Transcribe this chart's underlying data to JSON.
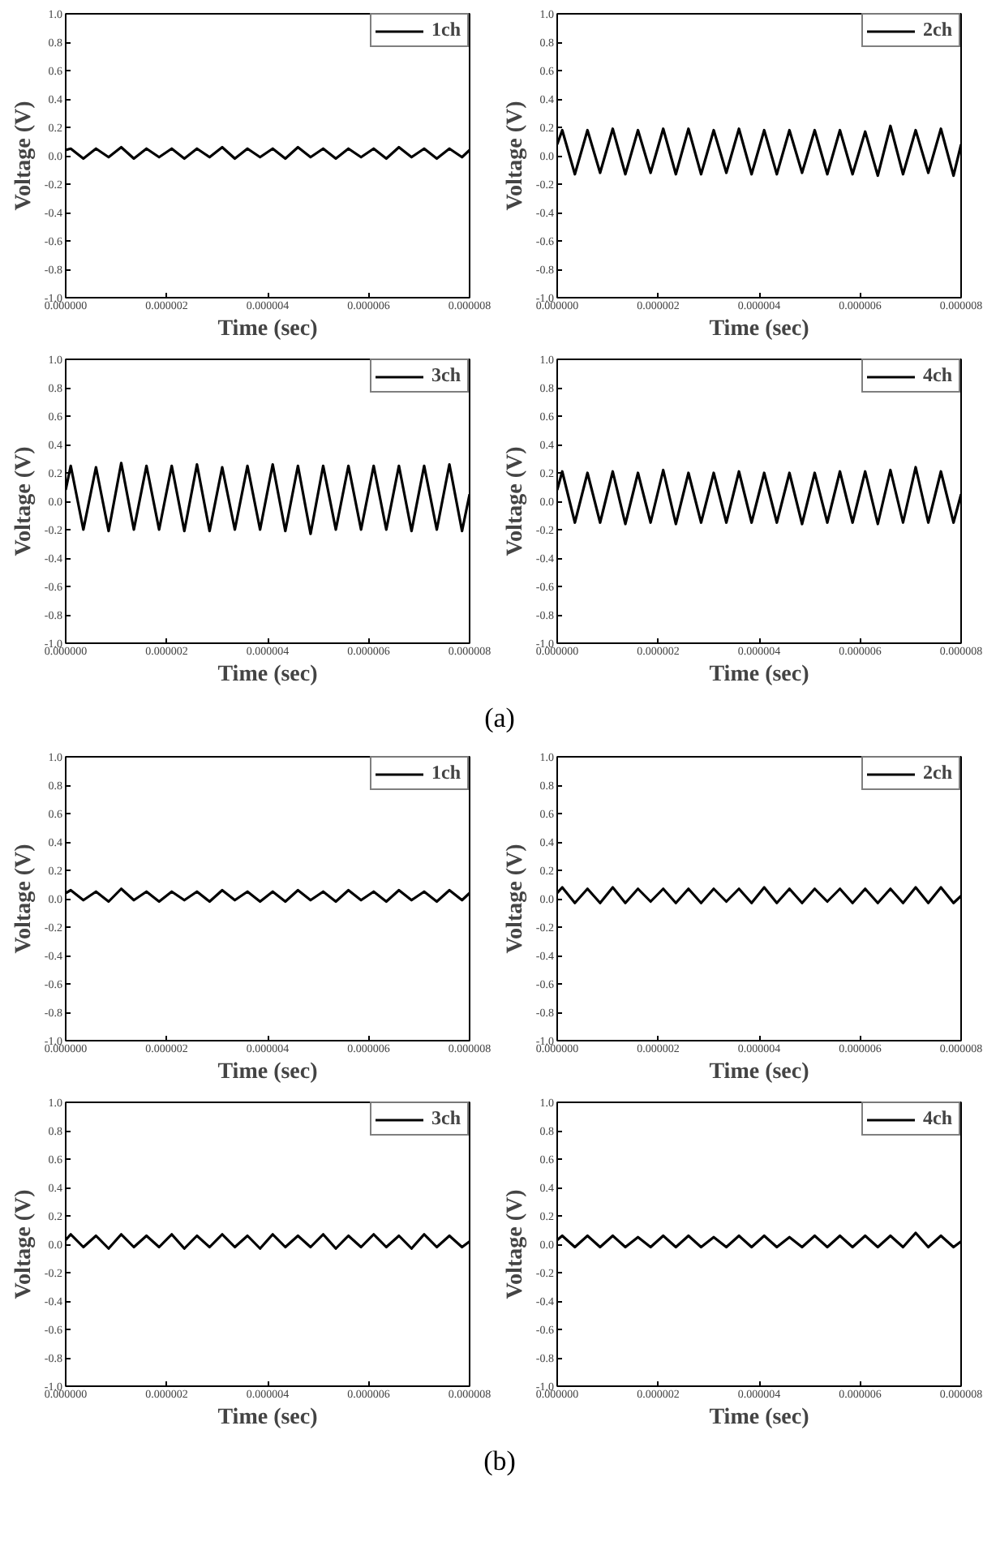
{
  "chart_data": [
    {
      "type": "line",
      "xlabel": "Time (sec)",
      "ylabel": "Voltage (V)",
      "legend": "top right",
      "grid": false,
      "xlim": [
        0,
        8e-06
      ],
      "ylim": [
        -1.0,
        1.0
      ],
      "xticks": [
        {
          "value": 0,
          "label": "0.000000"
        },
        {
          "value": 2e-06,
          "label": "0.000002"
        },
        {
          "value": 4e-06,
          "label": "0.000004"
        },
        {
          "value": 6e-06,
          "label": "0.000006"
        },
        {
          "value": 8e-06,
          "label": "0.000008"
        }
      ],
      "yticks": [
        {
          "value": -1.0,
          "label": "-1.0"
        },
        {
          "value": -0.8,
          "label": "-0.8"
        },
        {
          "value": -0.6,
          "label": "-0.6"
        },
        {
          "value": -0.4,
          "label": "-0.4"
        },
        {
          "value": -0.2,
          "label": "-0.2"
        },
        {
          "value": 0.0,
          "label": "0.0"
        },
        {
          "value": 0.2,
          "label": "0.2"
        },
        {
          "value": 0.4,
          "label": "0.4"
        },
        {
          "value": 0.6,
          "label": "0.6"
        },
        {
          "value": 0.8,
          "label": "0.8"
        },
        {
          "value": 1.0,
          "label": "1.0"
        }
      ],
      "x": [
        0,
        1e-07,
        3.5e-07,
        6e-07,
        8.5e-07,
        1.1e-06,
        1.35e-06,
        1.6e-06,
        1.85e-06,
        2.1e-06,
        2.35e-06,
        2.6e-06,
        2.85e-06,
        3.1e-06,
        3.35e-06,
        3.6e-06,
        3.85e-06,
        4.1e-06,
        4.35e-06,
        4.6e-06,
        4.85e-06,
        5.1e-06,
        5.35e-06,
        5.6e-06,
        5.85e-06,
        6.1e-06,
        6.35e-06,
        6.6e-06,
        6.85e-06,
        7.1e-06,
        7.35e-06,
        7.6e-06,
        7.85e-06,
        8e-06
      ],
      "series": [
        {
          "name": "1ch",
          "color": "#000000",
          "values": [
            0.04,
            0.05,
            -0.02,
            0.05,
            -0.01,
            0.06,
            -0.02,
            0.05,
            -0.01,
            0.05,
            -0.02,
            0.05,
            -0.01,
            0.06,
            -0.02,
            0.05,
            -0.01,
            0.05,
            -0.02,
            0.06,
            -0.01,
            0.05,
            -0.02,
            0.05,
            -0.01,
            0.05,
            -0.02,
            0.06,
            -0.01,
            0.05,
            -0.02,
            0.05,
            -0.01,
            0.04
          ]
        }
      ]
    },
    {
      "type": "line",
      "xlabel": "Time (sec)",
      "ylabel": "Voltage (V)",
      "legend": "top right",
      "grid": false,
      "xlim": [
        0,
        8e-06
      ],
      "ylim": [
        -1.0,
        1.0
      ],
      "xticks": [
        {
          "value": 0,
          "label": "0.000000"
        },
        {
          "value": 2e-06,
          "label": "0.000002"
        },
        {
          "value": 4e-06,
          "label": "0.000004"
        },
        {
          "value": 6e-06,
          "label": "0.000006"
        },
        {
          "value": 8e-06,
          "label": "0.000008"
        }
      ],
      "yticks": [
        {
          "value": -1.0,
          "label": "-1.0"
        },
        {
          "value": -0.8,
          "label": "-0.8"
        },
        {
          "value": -0.6,
          "label": "-0.6"
        },
        {
          "value": -0.4,
          "label": "-0.4"
        },
        {
          "value": -0.2,
          "label": "-0.2"
        },
        {
          "value": 0.0,
          "label": "0.0"
        },
        {
          "value": 0.2,
          "label": "0.2"
        },
        {
          "value": 0.4,
          "label": "0.4"
        },
        {
          "value": 0.6,
          "label": "0.6"
        },
        {
          "value": 0.8,
          "label": "0.8"
        },
        {
          "value": 1.0,
          "label": "1.0"
        }
      ],
      "x": [
        0,
        1e-07,
        3.5e-07,
        6e-07,
        8.5e-07,
        1.1e-06,
        1.35e-06,
        1.6e-06,
        1.85e-06,
        2.1e-06,
        2.35e-06,
        2.6e-06,
        2.85e-06,
        3.1e-06,
        3.35e-06,
        3.6e-06,
        3.85e-06,
        4.1e-06,
        4.35e-06,
        4.6e-06,
        4.85e-06,
        5.1e-06,
        5.35e-06,
        5.6e-06,
        5.85e-06,
        6.1e-06,
        6.35e-06,
        6.6e-06,
        6.85e-06,
        7.1e-06,
        7.35e-06,
        7.6e-06,
        7.85e-06,
        8e-06
      ],
      "series": [
        {
          "name": "2ch",
          "color": "#000000",
          "values": [
            0.08,
            0.18,
            -0.13,
            0.18,
            -0.12,
            0.19,
            -0.13,
            0.18,
            -0.12,
            0.19,
            -0.13,
            0.19,
            -0.13,
            0.18,
            -0.12,
            0.19,
            -0.13,
            0.18,
            -0.13,
            0.18,
            -0.12,
            0.18,
            -0.13,
            0.18,
            -0.13,
            0.17,
            -0.14,
            0.21,
            -0.13,
            0.18,
            -0.12,
            0.19,
            -0.14,
            0.08
          ]
        }
      ]
    },
    {
      "type": "line",
      "xlabel": "Time (sec)",
      "ylabel": "Voltage (V)",
      "legend": "top right",
      "grid": false,
      "xlim": [
        0,
        8e-06
      ],
      "ylim": [
        -1.0,
        1.0
      ],
      "xticks": [
        {
          "value": 0,
          "label": "0.000000"
        },
        {
          "value": 2e-06,
          "label": "0.000002"
        },
        {
          "value": 4e-06,
          "label": "0.000004"
        },
        {
          "value": 6e-06,
          "label": "0.000006"
        },
        {
          "value": 8e-06,
          "label": "0.000008"
        }
      ],
      "yticks": [
        {
          "value": -1.0,
          "label": "-1.0"
        },
        {
          "value": -0.8,
          "label": "-0.8"
        },
        {
          "value": -0.6,
          "label": "-0.6"
        },
        {
          "value": -0.4,
          "label": "-0.4"
        },
        {
          "value": -0.2,
          "label": "-0.2"
        },
        {
          "value": 0.0,
          "label": "0.0"
        },
        {
          "value": 0.2,
          "label": "0.2"
        },
        {
          "value": 0.4,
          "label": "0.4"
        },
        {
          "value": 0.6,
          "label": "0.6"
        },
        {
          "value": 0.8,
          "label": "0.8"
        },
        {
          "value": 1.0,
          "label": "1.0"
        }
      ],
      "x": [
        0,
        1e-07,
        3.5e-07,
        6e-07,
        8.5e-07,
        1.1e-06,
        1.35e-06,
        1.6e-06,
        1.85e-06,
        2.1e-06,
        2.35e-06,
        2.6e-06,
        2.85e-06,
        3.1e-06,
        3.35e-06,
        3.6e-06,
        3.85e-06,
        4.1e-06,
        4.35e-06,
        4.6e-06,
        4.85e-06,
        5.1e-06,
        5.35e-06,
        5.6e-06,
        5.85e-06,
        6.1e-06,
        6.35e-06,
        6.6e-06,
        6.85e-06,
        7.1e-06,
        7.35e-06,
        7.6e-06,
        7.85e-06,
        8e-06
      ],
      "series": [
        {
          "name": "3ch",
          "color": "#000000",
          "values": [
            0.08,
            0.25,
            -0.2,
            0.24,
            -0.21,
            0.27,
            -0.2,
            0.25,
            -0.2,
            0.25,
            -0.21,
            0.26,
            -0.21,
            0.24,
            -0.2,
            0.25,
            -0.2,
            0.26,
            -0.21,
            0.25,
            -0.23,
            0.25,
            -0.2,
            0.25,
            -0.2,
            0.25,
            -0.2,
            0.25,
            -0.21,
            0.25,
            -0.2,
            0.26,
            -0.21,
            0.05
          ]
        }
      ]
    },
    {
      "type": "line",
      "xlabel": "Time (sec)",
      "ylabel": "Voltage (V)",
      "legend": "top right",
      "grid": false,
      "xlim": [
        0,
        8e-06
      ],
      "ylim": [
        -1.0,
        1.0
      ],
      "annotations": [
        "(a)"
      ],
      "xticks": [
        {
          "value": 0,
          "label": "0.000000"
        },
        {
          "value": 2e-06,
          "label": "0.000002"
        },
        {
          "value": 4e-06,
          "label": "0.000004"
        },
        {
          "value": 6e-06,
          "label": "0.000006"
        },
        {
          "value": 8e-06,
          "label": "0.000008"
        }
      ],
      "yticks": [
        {
          "value": -1.0,
          "label": "-1.0"
        },
        {
          "value": -0.8,
          "label": "-0.8"
        },
        {
          "value": -0.6,
          "label": "-0.6"
        },
        {
          "value": -0.4,
          "label": "-0.4"
        },
        {
          "value": -0.2,
          "label": "-0.2"
        },
        {
          "value": 0.0,
          "label": "0.0"
        },
        {
          "value": 0.2,
          "label": "0.2"
        },
        {
          "value": 0.4,
          "label": "0.4"
        },
        {
          "value": 0.6,
          "label": "0.6"
        },
        {
          "value": 0.8,
          "label": "0.8"
        },
        {
          "value": 1.0,
          "label": "1.0"
        }
      ],
      "x": [
        0,
        1e-07,
        3.5e-07,
        6e-07,
        8.5e-07,
        1.1e-06,
        1.35e-06,
        1.6e-06,
        1.85e-06,
        2.1e-06,
        2.35e-06,
        2.6e-06,
        2.85e-06,
        3.1e-06,
        3.35e-06,
        3.6e-06,
        3.85e-06,
        4.1e-06,
        4.35e-06,
        4.6e-06,
        4.85e-06,
        5.1e-06,
        5.35e-06,
        5.6e-06,
        5.85e-06,
        6.1e-06,
        6.35e-06,
        6.6e-06,
        6.85e-06,
        7.1e-06,
        7.35e-06,
        7.6e-06,
        7.85e-06,
        8e-06
      ],
      "series": [
        {
          "name": "4ch",
          "color": "#000000",
          "values": [
            0.08,
            0.21,
            -0.15,
            0.2,
            -0.15,
            0.21,
            -0.16,
            0.2,
            -0.15,
            0.22,
            -0.16,
            0.2,
            -0.15,
            0.2,
            -0.15,
            0.21,
            -0.15,
            0.2,
            -0.15,
            0.2,
            -0.16,
            0.2,
            -0.15,
            0.21,
            -0.15,
            0.21,
            -0.16,
            0.22,
            -0.15,
            0.24,
            -0.15,
            0.21,
            -0.15,
            0.05
          ]
        }
      ]
    },
    {
      "type": "line",
      "xlabel": "Time (sec)",
      "ylabel": "Voltage (V)",
      "legend": "top right",
      "grid": false,
      "xlim": [
        0,
        8e-06
      ],
      "ylim": [
        -1.0,
        1.0
      ],
      "xticks": [
        {
          "value": 0,
          "label": "0.000000"
        },
        {
          "value": 2e-06,
          "label": "0.000002"
        },
        {
          "value": 4e-06,
          "label": "0.000004"
        },
        {
          "value": 6e-06,
          "label": "0.000006"
        },
        {
          "value": 8e-06,
          "label": "0.000008"
        }
      ],
      "yticks": [
        {
          "value": -1.0,
          "label": "-1.0"
        },
        {
          "value": -0.8,
          "label": "-0.8"
        },
        {
          "value": -0.6,
          "label": "-0.6"
        },
        {
          "value": -0.4,
          "label": "-0.4"
        },
        {
          "value": -0.2,
          "label": "-0.2"
        },
        {
          "value": 0.0,
          "label": "0.0"
        },
        {
          "value": 0.2,
          "label": "0.2"
        },
        {
          "value": 0.4,
          "label": "0.4"
        },
        {
          "value": 0.6,
          "label": "0.6"
        },
        {
          "value": 0.8,
          "label": "0.8"
        },
        {
          "value": 1.0,
          "label": "1.0"
        }
      ],
      "x": [
        0,
        1e-07,
        3.5e-07,
        6e-07,
        8.5e-07,
        1.1e-06,
        1.35e-06,
        1.6e-06,
        1.85e-06,
        2.1e-06,
        2.35e-06,
        2.6e-06,
        2.85e-06,
        3.1e-06,
        3.35e-06,
        3.6e-06,
        3.85e-06,
        4.1e-06,
        4.35e-06,
        4.6e-06,
        4.85e-06,
        5.1e-06,
        5.35e-06,
        5.6e-06,
        5.85e-06,
        6.1e-06,
        6.35e-06,
        6.6e-06,
        6.85e-06,
        7.1e-06,
        7.35e-06,
        7.6e-06,
        7.85e-06,
        8e-06
      ],
      "series": [
        {
          "name": "1ch",
          "color": "#000000",
          "values": [
            0.04,
            0.06,
            -0.01,
            0.05,
            -0.02,
            0.07,
            -0.01,
            0.05,
            -0.02,
            0.05,
            -0.01,
            0.05,
            -0.02,
            0.06,
            -0.01,
            0.05,
            -0.02,
            0.05,
            -0.02,
            0.06,
            -0.01,
            0.05,
            -0.02,
            0.06,
            -0.01,
            0.05,
            -0.02,
            0.06,
            -0.01,
            0.05,
            -0.02,
            0.06,
            -0.01,
            0.04
          ]
        }
      ]
    },
    {
      "type": "line",
      "xlabel": "Time (sec)",
      "ylabel": "Voltage (V)",
      "legend": "top right",
      "grid": false,
      "xlim": [
        0,
        8e-06
      ],
      "ylim": [
        -1.0,
        1.0
      ],
      "xticks": [
        {
          "value": 0,
          "label": "0.000000"
        },
        {
          "value": 2e-06,
          "label": "0.000002"
        },
        {
          "value": 4e-06,
          "label": "0.000004"
        },
        {
          "value": 6e-06,
          "label": "0.000006"
        },
        {
          "value": 8e-06,
          "label": "0.000008"
        }
      ],
      "yticks": [
        {
          "value": -1.0,
          "label": "-1.0"
        },
        {
          "value": -0.8,
          "label": "-0.8"
        },
        {
          "value": -0.6,
          "label": "-0.6"
        },
        {
          "value": -0.4,
          "label": "-0.4"
        },
        {
          "value": -0.2,
          "label": "-0.2"
        },
        {
          "value": 0.0,
          "label": "0.0"
        },
        {
          "value": 0.2,
          "label": "0.2"
        },
        {
          "value": 0.4,
          "label": "0.4"
        },
        {
          "value": 0.6,
          "label": "0.6"
        },
        {
          "value": 0.8,
          "label": "0.8"
        },
        {
          "value": 1.0,
          "label": "1.0"
        }
      ],
      "x": [
        0,
        1e-07,
        3.5e-07,
        6e-07,
        8.5e-07,
        1.1e-06,
        1.35e-06,
        1.6e-06,
        1.85e-06,
        2.1e-06,
        2.35e-06,
        2.6e-06,
        2.85e-06,
        3.1e-06,
        3.35e-06,
        3.6e-06,
        3.85e-06,
        4.1e-06,
        4.35e-06,
        4.6e-06,
        4.85e-06,
        5.1e-06,
        5.35e-06,
        5.6e-06,
        5.85e-06,
        6.1e-06,
        6.35e-06,
        6.6e-06,
        6.85e-06,
        7.1e-06,
        7.35e-06,
        7.6e-06,
        7.85e-06,
        8e-06
      ],
      "series": [
        {
          "name": "2ch",
          "color": "#000000",
          "values": [
            0.04,
            0.08,
            -0.03,
            0.07,
            -0.03,
            0.08,
            -0.03,
            0.07,
            -0.02,
            0.07,
            -0.03,
            0.07,
            -0.03,
            0.07,
            -0.02,
            0.07,
            -0.03,
            0.08,
            -0.03,
            0.07,
            -0.03,
            0.07,
            -0.02,
            0.07,
            -0.03,
            0.07,
            -0.03,
            0.07,
            -0.03,
            0.08,
            -0.03,
            0.08,
            -0.03,
            0.02
          ]
        }
      ]
    },
    {
      "type": "line",
      "xlabel": "Time (sec)",
      "ylabel": "Voltage (V)",
      "legend": "top right",
      "grid": false,
      "xlim": [
        0,
        8e-06
      ],
      "ylim": [
        -1.0,
        1.0
      ],
      "xticks": [
        {
          "value": 0,
          "label": "0.000000"
        },
        {
          "value": 2e-06,
          "label": "0.000002"
        },
        {
          "value": 4e-06,
          "label": "0.000004"
        },
        {
          "value": 6e-06,
          "label": "0.000006"
        },
        {
          "value": 8e-06,
          "label": "0.000008"
        }
      ],
      "yticks": [
        {
          "value": -1.0,
          "label": "-1.0"
        },
        {
          "value": -0.8,
          "label": "-0.8"
        },
        {
          "value": -0.6,
          "label": "-0.6"
        },
        {
          "value": -0.4,
          "label": "-0.4"
        },
        {
          "value": -0.2,
          "label": "-0.2"
        },
        {
          "value": 0.0,
          "label": "0.0"
        },
        {
          "value": 0.2,
          "label": "0.2"
        },
        {
          "value": 0.4,
          "label": "0.4"
        },
        {
          "value": 0.6,
          "label": "0.6"
        },
        {
          "value": 0.8,
          "label": "0.8"
        },
        {
          "value": 1.0,
          "label": "1.0"
        }
      ],
      "x": [
        0,
        1e-07,
        3.5e-07,
        6e-07,
        8.5e-07,
        1.1e-06,
        1.35e-06,
        1.6e-06,
        1.85e-06,
        2.1e-06,
        2.35e-06,
        2.6e-06,
        2.85e-06,
        3.1e-06,
        3.35e-06,
        3.6e-06,
        3.85e-06,
        4.1e-06,
        4.35e-06,
        4.6e-06,
        4.85e-06,
        5.1e-06,
        5.35e-06,
        5.6e-06,
        5.85e-06,
        6.1e-06,
        6.35e-06,
        6.6e-06,
        6.85e-06,
        7.1e-06,
        7.35e-06,
        7.6e-06,
        7.85e-06,
        8e-06
      ],
      "series": [
        {
          "name": "3ch",
          "color": "#000000",
          "values": [
            0.03,
            0.07,
            -0.02,
            0.06,
            -0.03,
            0.07,
            -0.02,
            0.06,
            -0.02,
            0.07,
            -0.03,
            0.06,
            -0.02,
            0.07,
            -0.02,
            0.06,
            -0.03,
            0.07,
            -0.02,
            0.06,
            -0.02,
            0.07,
            -0.03,
            0.06,
            -0.02,
            0.07,
            -0.02,
            0.06,
            -0.03,
            0.07,
            -0.02,
            0.06,
            -0.02,
            0.02
          ]
        }
      ]
    },
    {
      "type": "line",
      "xlabel": "Time (sec)",
      "ylabel": "Voltage (V)",
      "legend": "top right",
      "grid": false,
      "xlim": [
        0,
        8e-06
      ],
      "ylim": [
        -1.0,
        1.0
      ],
      "annotations": [
        "(b)"
      ],
      "xticks": [
        {
          "value": 0,
          "label": "0.000000"
        },
        {
          "value": 2e-06,
          "label": "0.000002"
        },
        {
          "value": 4e-06,
          "label": "0.000004"
        },
        {
          "value": 6e-06,
          "label": "0.000006"
        },
        {
          "value": 8e-06,
          "label": "0.000008"
        }
      ],
      "yticks": [
        {
          "value": -1.0,
          "label": "-1.0"
        },
        {
          "value": -0.8,
          "label": "-0.8"
        },
        {
          "value": -0.6,
          "label": "-0.6"
        },
        {
          "value": -0.4,
          "label": "-0.4"
        },
        {
          "value": -0.2,
          "label": "-0.2"
        },
        {
          "value": 0.0,
          "label": "0.0"
        },
        {
          "value": 0.2,
          "label": "0.2"
        },
        {
          "value": 0.4,
          "label": "0.4"
        },
        {
          "value": 0.6,
          "label": "0.6"
        },
        {
          "value": 0.8,
          "label": "0.8"
        },
        {
          "value": 1.0,
          "label": "1.0"
        }
      ],
      "x": [
        0,
        1e-07,
        3.5e-07,
        6e-07,
        8.5e-07,
        1.1e-06,
        1.35e-06,
        1.6e-06,
        1.85e-06,
        2.1e-06,
        2.35e-06,
        2.6e-06,
        2.85e-06,
        3.1e-06,
        3.35e-06,
        3.6e-06,
        3.85e-06,
        4.1e-06,
        4.35e-06,
        4.6e-06,
        4.85e-06,
        5.1e-06,
        5.35e-06,
        5.6e-06,
        5.85e-06,
        6.1e-06,
        6.35e-06,
        6.6e-06,
        6.85e-06,
        7.1e-06,
        7.35e-06,
        7.6e-06,
        7.85e-06,
        8e-06
      ],
      "series": [
        {
          "name": "4ch",
          "color": "#000000",
          "values": [
            0.03,
            0.06,
            -0.02,
            0.06,
            -0.02,
            0.06,
            -0.02,
            0.05,
            -0.02,
            0.06,
            -0.02,
            0.06,
            -0.02,
            0.05,
            -0.02,
            0.06,
            -0.02,
            0.06,
            -0.02,
            0.05,
            -0.02,
            0.06,
            -0.02,
            0.06,
            -0.02,
            0.06,
            -0.02,
            0.06,
            -0.02,
            0.08,
            -0.02,
            0.06,
            -0.02,
            0.02
          ]
        }
      ]
    }
  ]
}
